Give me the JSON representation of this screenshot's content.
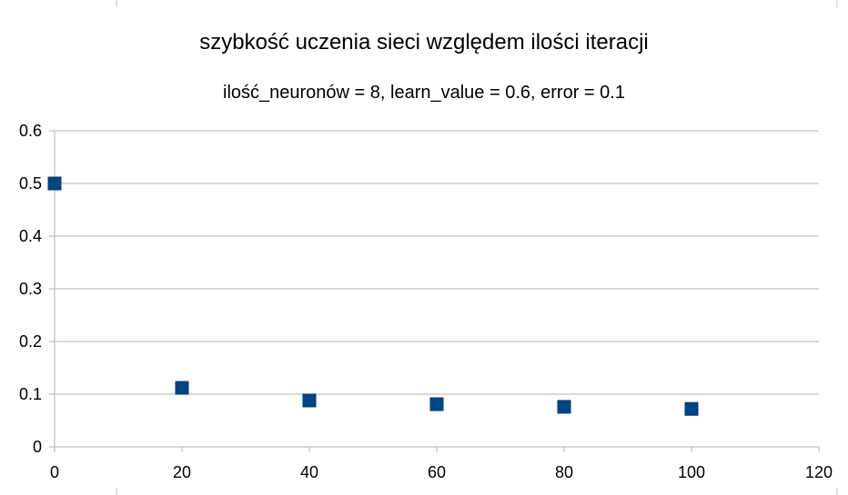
{
  "chart_data": {
    "type": "scatter",
    "title": "szybkość uczenia sieci względem ilości iteracji",
    "subtitle": "ilość_neuronów = 8, learn_value = 0.6, error = 0.1",
    "xlabel": "",
    "ylabel": "",
    "xlim": [
      0,
      120
    ],
    "ylim": [
      0,
      0.6
    ],
    "x_ticks": [
      "0",
      "20",
      "40",
      "60",
      "80",
      "100",
      "120"
    ],
    "y_ticks": [
      "0",
      "0.1",
      "0.2",
      "0.3",
      "0.4",
      "0.5",
      "0.6"
    ],
    "grid": "horizontal",
    "legend": "none",
    "marker": "square",
    "series": [
      {
        "color": "#004586",
        "points": [
          {
            "x": 0,
            "y": 0.5
          },
          {
            "x": 20,
            "y": 0.112
          },
          {
            "x": 40,
            "y": 0.088
          },
          {
            "x": 60,
            "y": 0.081
          },
          {
            "x": 80,
            "y": 0.076
          },
          {
            "x": 100,
            "y": 0.072
          }
        ]
      }
    ]
  }
}
